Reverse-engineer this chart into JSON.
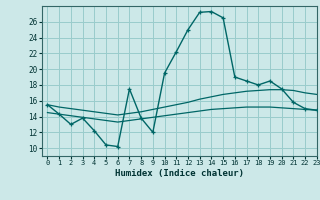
{
  "xlabel": "Humidex (Indice chaleur)",
  "bg_color": "#cce8e8",
  "grid_color": "#99cccc",
  "line_color": "#006666",
  "xlim": [
    -0.5,
    23
  ],
  "ylim": [
    9,
    28
  ],
  "xticks": [
    0,
    1,
    2,
    3,
    4,
    5,
    6,
    7,
    8,
    9,
    10,
    11,
    12,
    13,
    14,
    15,
    16,
    17,
    18,
    19,
    20,
    21,
    22,
    23
  ],
  "yticks": [
    10,
    12,
    14,
    16,
    18,
    20,
    22,
    24,
    26
  ],
  "hours": [
    0,
    1,
    2,
    3,
    4,
    5,
    6,
    7,
    8,
    9,
    10,
    11,
    12,
    13,
    14,
    15,
    16,
    17,
    18,
    19,
    20,
    21,
    22,
    23
  ],
  "main_curve": [
    15.5,
    14.3,
    13.0,
    13.8,
    12.2,
    10.4,
    10.2,
    17.5,
    13.8,
    12.0,
    19.5,
    22.2,
    25.0,
    27.2,
    27.3,
    26.5,
    19.0,
    18.5,
    18.0,
    18.5,
    17.5,
    15.8,
    15.0,
    14.8
  ],
  "upper_curve": [
    15.5,
    15.2,
    15.0,
    14.8,
    14.6,
    14.4,
    14.2,
    14.4,
    14.6,
    14.9,
    15.2,
    15.5,
    15.8,
    16.2,
    16.5,
    16.8,
    17.0,
    17.2,
    17.3,
    17.4,
    17.4,
    17.3,
    17.0,
    16.8
  ],
  "lower_curve": [
    14.5,
    14.3,
    14.1,
    13.9,
    13.7,
    13.5,
    13.3,
    13.5,
    13.7,
    13.9,
    14.1,
    14.3,
    14.5,
    14.7,
    14.9,
    15.0,
    15.1,
    15.2,
    15.2,
    15.2,
    15.1,
    15.0,
    14.9,
    14.8
  ]
}
